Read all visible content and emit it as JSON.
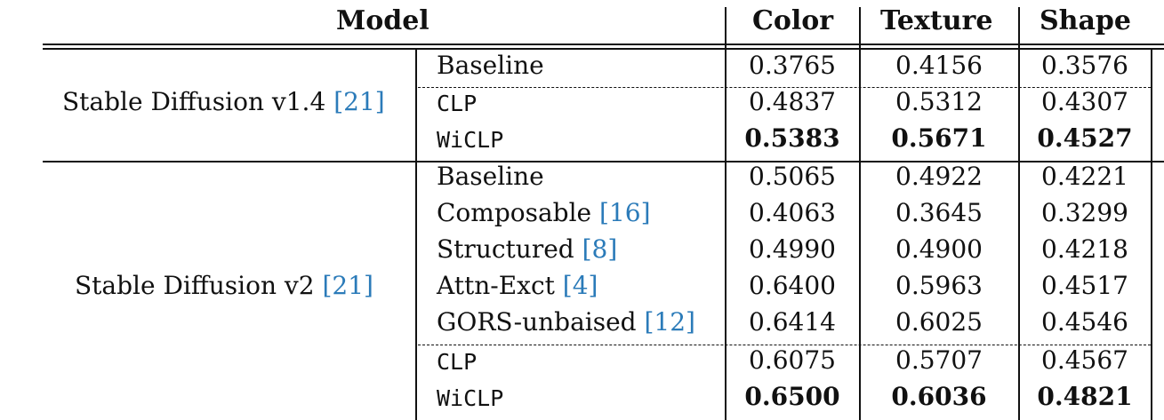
{
  "header": {
    "model": "Model",
    "color": "Color",
    "texture": "Texture",
    "shape": "Shape"
  },
  "groups": [
    {
      "model": "Stable Diffusion v1.4",
      "ref": "21",
      "rows": [
        {
          "method": "Baseline",
          "ref": "",
          "color": "0.3765",
          "texture": "0.4156",
          "shape": "0.3576",
          "bold": false
        },
        {
          "method": "CLP",
          "ref": "",
          "color": "0.4837",
          "texture": "0.5312",
          "shape": "0.4307",
          "bold": false
        },
        {
          "method": "WiCLP",
          "ref": "",
          "color": "0.5383",
          "texture": "0.5671",
          "shape": "0.4527",
          "bold": true
        }
      ]
    },
    {
      "model": "Stable Diffusion v2",
      "ref": "21",
      "rows": [
        {
          "method": "Baseline",
          "ref": "",
          "color": "0.5065",
          "texture": "0.4922",
          "shape": "0.4221",
          "bold": false
        },
        {
          "method": "Composable",
          "ref": "16",
          "color": "0.4063",
          "texture": "0.3645",
          "shape": "0.3299",
          "bold": false
        },
        {
          "method": "Structured",
          "ref": "8",
          "color": "0.4990",
          "texture": "0.4900",
          "shape": "0.4218",
          "bold": false
        },
        {
          "method": "Attn-Exct",
          "ref": "4",
          "color": "0.6400",
          "texture": "0.5963",
          "shape": "0.4517",
          "bold": false
        },
        {
          "method": "GORS-unbaised",
          "ref": "12",
          "color": "0.6414",
          "texture": "0.6025",
          "shape": "0.4546",
          "bold": false
        },
        {
          "method": "CLP",
          "ref": "",
          "color": "0.6075",
          "texture": "0.5707",
          "shape": "0.4567",
          "bold": false
        },
        {
          "method": "WiCLP",
          "ref": "",
          "color": "0.6500",
          "texture": "0.6036",
          "shape": "0.4821",
          "bold": true
        }
      ]
    }
  ]
}
